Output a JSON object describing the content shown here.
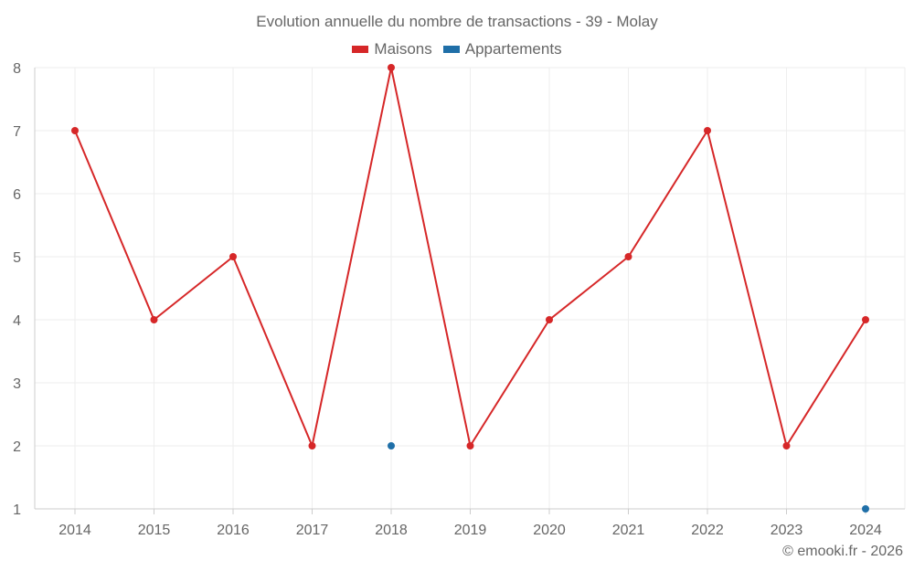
{
  "colors": {
    "maisons": "#d62728",
    "appartements": "#1f6fa8",
    "grid": "#eeeeee",
    "axis": "#cccccc"
  },
  "credit": "© emooki.fr - 2026",
  "chart_data": {
    "type": "line",
    "title": "Evolution annuelle du nombre de transactions - 39 - Molay",
    "categories": [
      "2014",
      "2015",
      "2016",
      "2017",
      "2018",
      "2019",
      "2020",
      "2021",
      "2022",
      "2023",
      "2024"
    ],
    "ylim": [
      1,
      8
    ],
    "yticks": [
      "1",
      "2",
      "3",
      "4",
      "5",
      "6",
      "7",
      "8"
    ],
    "legend_position": "top-center",
    "grid": true,
    "series": [
      {
        "name": "Maisons",
        "color": "#d62728",
        "values": [
          7,
          4,
          5,
          2,
          8,
          2,
          4,
          5,
          7,
          2,
          4
        ]
      },
      {
        "name": "Appartements",
        "color": "#1f6fa8",
        "values": [
          null,
          null,
          null,
          null,
          2,
          null,
          null,
          null,
          null,
          null,
          1
        ]
      }
    ]
  }
}
